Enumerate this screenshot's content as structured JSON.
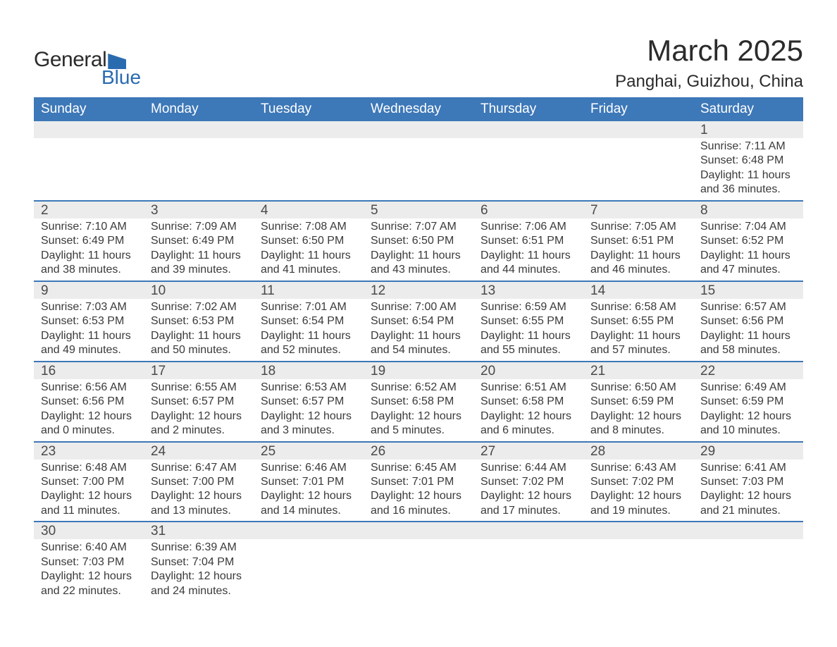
{
  "brand": {
    "name_part1": "General",
    "name_part2": "Blue",
    "mark_color": "#2a6bb0"
  },
  "title": "March 2025",
  "location": "Panghai, Guizhou, China",
  "colors": {
    "header_bg": "#3d78b8",
    "header_text": "#ffffff",
    "numrow_bg": "#ececec",
    "row_border": "#3d78b8",
    "body_text": "#3a3a3a",
    "page_bg": "#ffffff"
  },
  "fonts": {
    "title_size_pt": 32,
    "location_size_pt": 18,
    "dayheader_size_pt": 14,
    "daynum_size_pt": 14,
    "cell_size_pt": 12
  },
  "day_headers": [
    "Sunday",
    "Monday",
    "Tuesday",
    "Wednesday",
    "Thursday",
    "Friday",
    "Saturday"
  ],
  "weeks": [
    [
      null,
      null,
      null,
      null,
      null,
      null,
      {
        "n": "1",
        "sunrise": "Sunrise: 7:11 AM",
        "sunset": "Sunset: 6:48 PM",
        "daylight": "Daylight: 11 hours and 36 minutes."
      }
    ],
    [
      {
        "n": "2",
        "sunrise": "Sunrise: 7:10 AM",
        "sunset": "Sunset: 6:49 PM",
        "daylight": "Daylight: 11 hours and 38 minutes."
      },
      {
        "n": "3",
        "sunrise": "Sunrise: 7:09 AM",
        "sunset": "Sunset: 6:49 PM",
        "daylight": "Daylight: 11 hours and 39 minutes."
      },
      {
        "n": "4",
        "sunrise": "Sunrise: 7:08 AM",
        "sunset": "Sunset: 6:50 PM",
        "daylight": "Daylight: 11 hours and 41 minutes."
      },
      {
        "n": "5",
        "sunrise": "Sunrise: 7:07 AM",
        "sunset": "Sunset: 6:50 PM",
        "daylight": "Daylight: 11 hours and 43 minutes."
      },
      {
        "n": "6",
        "sunrise": "Sunrise: 7:06 AM",
        "sunset": "Sunset: 6:51 PM",
        "daylight": "Daylight: 11 hours and 44 minutes."
      },
      {
        "n": "7",
        "sunrise": "Sunrise: 7:05 AM",
        "sunset": "Sunset: 6:51 PM",
        "daylight": "Daylight: 11 hours and 46 minutes."
      },
      {
        "n": "8",
        "sunrise": "Sunrise: 7:04 AM",
        "sunset": "Sunset: 6:52 PM",
        "daylight": "Daylight: 11 hours and 47 minutes."
      }
    ],
    [
      {
        "n": "9",
        "sunrise": "Sunrise: 7:03 AM",
        "sunset": "Sunset: 6:53 PM",
        "daylight": "Daylight: 11 hours and 49 minutes."
      },
      {
        "n": "10",
        "sunrise": "Sunrise: 7:02 AM",
        "sunset": "Sunset: 6:53 PM",
        "daylight": "Daylight: 11 hours and 50 minutes."
      },
      {
        "n": "11",
        "sunrise": "Sunrise: 7:01 AM",
        "sunset": "Sunset: 6:54 PM",
        "daylight": "Daylight: 11 hours and 52 minutes."
      },
      {
        "n": "12",
        "sunrise": "Sunrise: 7:00 AM",
        "sunset": "Sunset: 6:54 PM",
        "daylight": "Daylight: 11 hours and 54 minutes."
      },
      {
        "n": "13",
        "sunrise": "Sunrise: 6:59 AM",
        "sunset": "Sunset: 6:55 PM",
        "daylight": "Daylight: 11 hours and 55 minutes."
      },
      {
        "n": "14",
        "sunrise": "Sunrise: 6:58 AM",
        "sunset": "Sunset: 6:55 PM",
        "daylight": "Daylight: 11 hours and 57 minutes."
      },
      {
        "n": "15",
        "sunrise": "Sunrise: 6:57 AM",
        "sunset": "Sunset: 6:56 PM",
        "daylight": "Daylight: 11 hours and 58 minutes."
      }
    ],
    [
      {
        "n": "16",
        "sunrise": "Sunrise: 6:56 AM",
        "sunset": "Sunset: 6:56 PM",
        "daylight": "Daylight: 12 hours and 0 minutes."
      },
      {
        "n": "17",
        "sunrise": "Sunrise: 6:55 AM",
        "sunset": "Sunset: 6:57 PM",
        "daylight": "Daylight: 12 hours and 2 minutes."
      },
      {
        "n": "18",
        "sunrise": "Sunrise: 6:53 AM",
        "sunset": "Sunset: 6:57 PM",
        "daylight": "Daylight: 12 hours and 3 minutes."
      },
      {
        "n": "19",
        "sunrise": "Sunrise: 6:52 AM",
        "sunset": "Sunset: 6:58 PM",
        "daylight": "Daylight: 12 hours and 5 minutes."
      },
      {
        "n": "20",
        "sunrise": "Sunrise: 6:51 AM",
        "sunset": "Sunset: 6:58 PM",
        "daylight": "Daylight: 12 hours and 6 minutes."
      },
      {
        "n": "21",
        "sunrise": "Sunrise: 6:50 AM",
        "sunset": "Sunset: 6:59 PM",
        "daylight": "Daylight: 12 hours and 8 minutes."
      },
      {
        "n": "22",
        "sunrise": "Sunrise: 6:49 AM",
        "sunset": "Sunset: 6:59 PM",
        "daylight": "Daylight: 12 hours and 10 minutes."
      }
    ],
    [
      {
        "n": "23",
        "sunrise": "Sunrise: 6:48 AM",
        "sunset": "Sunset: 7:00 PM",
        "daylight": "Daylight: 12 hours and 11 minutes."
      },
      {
        "n": "24",
        "sunrise": "Sunrise: 6:47 AM",
        "sunset": "Sunset: 7:00 PM",
        "daylight": "Daylight: 12 hours and 13 minutes."
      },
      {
        "n": "25",
        "sunrise": "Sunrise: 6:46 AM",
        "sunset": "Sunset: 7:01 PM",
        "daylight": "Daylight: 12 hours and 14 minutes."
      },
      {
        "n": "26",
        "sunrise": "Sunrise: 6:45 AM",
        "sunset": "Sunset: 7:01 PM",
        "daylight": "Daylight: 12 hours and 16 minutes."
      },
      {
        "n": "27",
        "sunrise": "Sunrise: 6:44 AM",
        "sunset": "Sunset: 7:02 PM",
        "daylight": "Daylight: 12 hours and 17 minutes."
      },
      {
        "n": "28",
        "sunrise": "Sunrise: 6:43 AM",
        "sunset": "Sunset: 7:02 PM",
        "daylight": "Daylight: 12 hours and 19 minutes."
      },
      {
        "n": "29",
        "sunrise": "Sunrise: 6:41 AM",
        "sunset": "Sunset: 7:03 PM",
        "daylight": "Daylight: 12 hours and 21 minutes."
      }
    ],
    [
      {
        "n": "30",
        "sunrise": "Sunrise: 6:40 AM",
        "sunset": "Sunset: 7:03 PM",
        "daylight": "Daylight: 12 hours and 22 minutes."
      },
      {
        "n": "31",
        "sunrise": "Sunrise: 6:39 AM",
        "sunset": "Sunset: 7:04 PM",
        "daylight": "Daylight: 12 hours and 24 minutes."
      },
      null,
      null,
      null,
      null,
      null
    ]
  ]
}
